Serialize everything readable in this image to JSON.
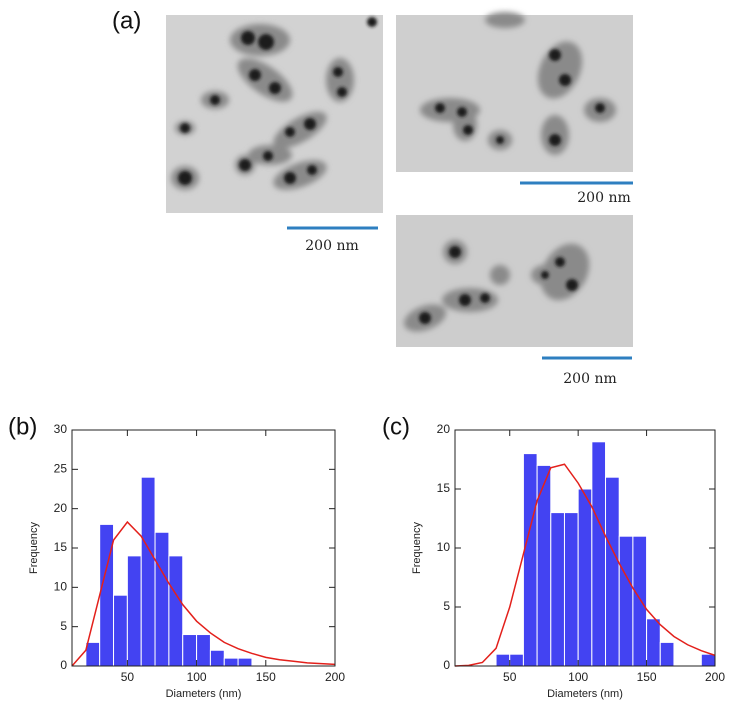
{
  "panel_labels": [
    "(a)",
    "(b)",
    "(c)"
  ],
  "scale_bars": [
    "200 nm",
    "200 nm",
    "200 nm"
  ],
  "chart_data": [
    {
      "type": "histogram",
      "xlabel": "Diameters (nm)",
      "ylabel": "Frequency",
      "color": "#4343f2",
      "bins": [
        20,
        30,
        40,
        50,
        60,
        70,
        80,
        90,
        100,
        110,
        120,
        130,
        140
      ],
      "values": [
        3,
        18,
        9,
        14,
        24,
        17,
        14,
        4,
        4,
        2,
        1,
        1
      ],
      "fit": {
        "color": "#e3201b",
        "x": [
          10,
          20,
          30,
          40,
          50,
          60,
          70,
          80,
          90,
          100,
          110,
          120,
          130,
          140,
          150,
          160,
          170,
          180,
          190,
          200
        ],
        "values": [
          0,
          2,
          9,
          16,
          18.3,
          16.5,
          13.5,
          10.5,
          7.8,
          5.7,
          4.2,
          3,
          2.2,
          1.6,
          1.1,
          0.8,
          0.6,
          0.4,
          0.3,
          0.2
        ]
      },
      "xlim": [
        10,
        200
      ],
      "xticks": [
        50,
        100,
        150,
        200
      ],
      "ylim": [
        0,
        30
      ],
      "yticks": [
        0,
        5,
        10,
        15,
        20,
        25,
        30
      ]
    },
    {
      "type": "histogram",
      "xlabel": "Diameters (nm)",
      "ylabel": "Frequency",
      "color": "#4343f2",
      "bins": [
        40,
        50,
        60,
        70,
        80,
        90,
        100,
        110,
        120,
        130,
        140,
        150,
        160,
        170,
        180,
        190,
        200
      ],
      "values": [
        1,
        1,
        18,
        17,
        13,
        13,
        15,
        19,
        16,
        11,
        11,
        4,
        2,
        0,
        0,
        1
      ],
      "fit": {
        "color": "#e3201b",
        "x": [
          10,
          20,
          30,
          40,
          50,
          60,
          70,
          80,
          90,
          100,
          110,
          120,
          130,
          140,
          150,
          160,
          170,
          180,
          190,
          200
        ],
        "values": [
          0,
          0.05,
          0.3,
          1.5,
          5,
          9.5,
          14,
          16.8,
          17.1,
          15.5,
          13.5,
          11,
          8.7,
          6.6,
          4.8,
          3.5,
          2.5,
          1.8,
          1.3,
          0.9
        ]
      },
      "xlim": [
        10,
        200
      ],
      "xticks": [
        50,
        100,
        150,
        200
      ],
      "ylim": [
        0,
        20
      ],
      "yticks": [
        0,
        5,
        10,
        15,
        20
      ]
    }
  ]
}
